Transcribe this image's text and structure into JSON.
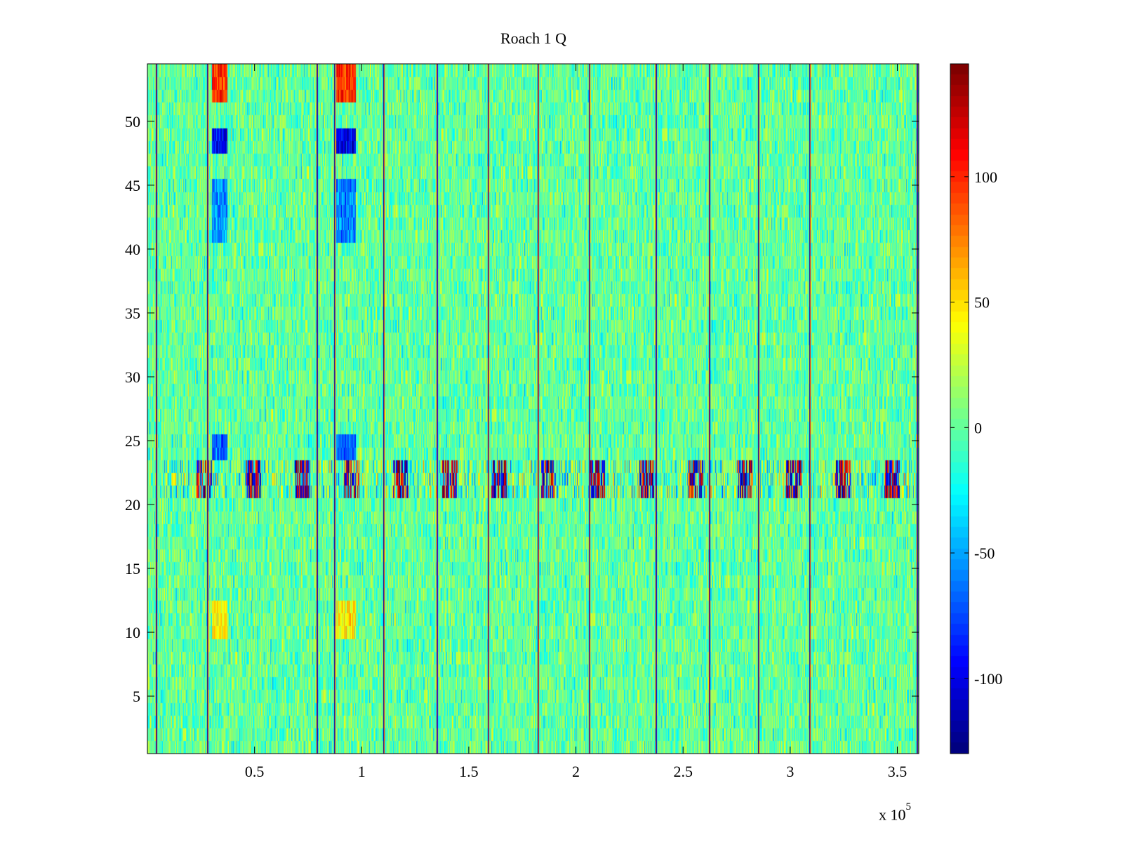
{
  "chart_data": {
    "type": "heatmap",
    "title": "Roach 1 Q",
    "xlabel": "",
    "ylabel": "",
    "xlim": [
      0,
      360000
    ],
    "ylim": [
      0.5,
      54.5
    ],
    "x_multiplier_label": "x 10",
    "x_multiplier_exponent": "5",
    "x_ticks": [
      {
        "value": 50000,
        "label": "0.5"
      },
      {
        "value": 100000,
        "label": "1"
      },
      {
        "value": 150000,
        "label": "1.5"
      },
      {
        "value": 200000,
        "label": "2"
      },
      {
        "value": 250000,
        "label": "2.5"
      },
      {
        "value": 300000,
        "label": "3"
      },
      {
        "value": 350000,
        "label": "3.5"
      }
    ],
    "y_ticks": [
      {
        "value": 5,
        "label": "5"
      },
      {
        "value": 10,
        "label": "10"
      },
      {
        "value": 15,
        "label": "15"
      },
      {
        "value": 20,
        "label": "20"
      },
      {
        "value": 25,
        "label": "25"
      },
      {
        "value": 30,
        "label": "30"
      },
      {
        "value": 35,
        "label": "35"
      },
      {
        "value": 40,
        "label": "40"
      },
      {
        "value": 45,
        "label": "45"
      },
      {
        "value": 50,
        "label": "50"
      }
    ],
    "colormap": "jet",
    "clim": [
      -130,
      145
    ],
    "colorbar_ticks": [
      {
        "value": 100,
        "label": "100"
      },
      {
        "value": 50,
        "label": "50"
      },
      {
        "value": 0,
        "label": "0"
      },
      {
        "value": -50,
        "label": "-50"
      },
      {
        "value": -100,
        "label": "-100"
      }
    ],
    "rows": 54,
    "background_level": 0,
    "vertical_lines": [
      {
        "x": 4000,
        "value": 130
      },
      {
        "x": 28000,
        "value": -120
      },
      {
        "x": 79000,
        "value": 130
      },
      {
        "x": 87000,
        "value": -120
      },
      {
        "x": 110000,
        "value": -120
      },
      {
        "x": 135000,
        "value": 120
      },
      {
        "x": 159000,
        "value": -120
      },
      {
        "x": 182000,
        "value": -120
      },
      {
        "x": 206000,
        "value": -120
      },
      {
        "x": 237000,
        "value": 130
      },
      {
        "x": 262000,
        "value": 130
      },
      {
        "x": 285000,
        "value": -120
      },
      {
        "x": 309000,
        "value": -120
      },
      {
        "x": 359000,
        "value": 130
      }
    ],
    "row_band": {
      "rows": [
        21,
        22,
        23
      ],
      "value_range": [
        -130,
        145
      ],
      "note_x_start": 8000
    },
    "feature_blocks": [
      {
        "x_range": [
          30000,
          37000
        ],
        "rows": [
          52,
          53,
          54
        ],
        "value": 100
      },
      {
        "x_range": [
          30000,
          37000
        ],
        "rows": [
          48,
          49
        ],
        "value": -100
      },
      {
        "x_range": [
          30000,
          37000
        ],
        "rows": [
          41,
          42,
          43,
          44,
          45
        ],
        "value": -55
      },
      {
        "x_range": [
          30000,
          37000
        ],
        "rows": [
          24,
          25
        ],
        "value": -70
      },
      {
        "x_range": [
          30000,
          37000
        ],
        "rows": [
          10,
          11,
          12
        ],
        "value": 45
      },
      {
        "x_range": [
          88000,
          97000
        ],
        "rows": [
          52,
          53,
          54
        ],
        "value": 100
      },
      {
        "x_range": [
          88000,
          97000
        ],
        "rows": [
          48,
          49
        ],
        "value": -100
      },
      {
        "x_range": [
          88000,
          97000
        ],
        "rows": [
          41,
          42,
          43,
          44,
          45
        ],
        "value": -60
      },
      {
        "x_range": [
          88000,
          97000
        ],
        "rows": [
          24,
          25
        ],
        "value": -70
      },
      {
        "x_range": [
          88000,
          97000
        ],
        "rows": [
          10,
          11,
          12
        ],
        "value": 45
      }
    ]
  }
}
